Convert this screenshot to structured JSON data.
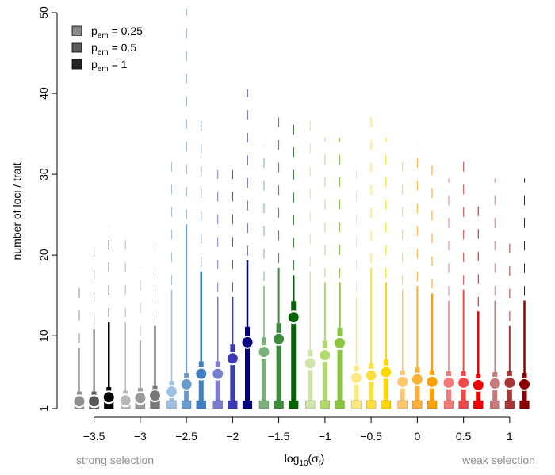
{
  "chart_data": {
    "type": "scatter",
    "xlabel_main": "log",
    "xlabel_sub": "10",
    "xlabel_paren": "(σ",
    "xlabel_paren_sub": "f",
    "xlabel_close": ")",
    "ylabel": "number of loci / trait",
    "ylim": [
      1,
      50
    ],
    "xlim": [
      -3.9,
      1.25
    ],
    "yticks": [
      1,
      10,
      20,
      30,
      40,
      50
    ],
    "xticks": [
      -3.5,
      -3,
      -2.5,
      -2,
      -1.5,
      -1,
      -0.5,
      0,
      0.5,
      1
    ],
    "xtick_labels": [
      "−3.5",
      "−3",
      "−2.5",
      "−2",
      "−1.5",
      "−1",
      "−0.5",
      "0",
      "0.5",
      "1"
    ],
    "notes": {
      "left": "strong selection",
      "right": "weak selection"
    },
    "legend": {
      "placement": "top-left",
      "entries": [
        {
          "prefix": "p",
          "sub": "em",
          "suffix": " = 0.25",
          "color": "#8a8a8a"
        },
        {
          "prefix": "p",
          "sub": "em",
          "suffix": " = 0.5",
          "color": "#5c5c5c"
        },
        {
          "prefix": "p",
          "sub": "em",
          "suffix": " = 1",
          "color": "#262626"
        }
      ]
    },
    "groups": [
      {
        "x": -3.5,
        "colors": [
          "#8f8f8f",
          "#595959",
          "#000000"
        ],
        "means": [
          1.9,
          1.9,
          2.4
        ],
        "maxes": [
          16.5,
          21.5,
          23.5
        ]
      },
      {
        "x": -3.0,
        "colors": [
          "#b8b8b8",
          "#9a9a9a",
          "#787878"
        ],
        "means": [
          2.0,
          2.3,
          2.6
        ],
        "maxes": [
          23.5,
          18.5,
          22.5
        ]
      },
      {
        "x": -2.5,
        "colors": [
          "#9ec0e2",
          "#6a9bd0",
          "#3d7fc0"
        ],
        "means": [
          3.1,
          4.0,
          5.3
        ],
        "maxes": [
          32.5,
          50.5,
          37.5
        ]
      },
      {
        "x": -2.0,
        "colors": [
          "#7b7dd0",
          "#3b3bb5",
          "#000080"
        ],
        "means": [
          5.3,
          7.2,
          9.2
        ],
        "maxes": [
          30.5,
          30.5,
          40.5
        ]
      },
      {
        "x": -1.5,
        "colors": [
          "#7ab07a",
          "#3c8c3c",
          "#006400"
        ],
        "means": [
          8.0,
          9.6,
          12.3
        ],
        "maxes": [
          33.5,
          38.5,
          36.5
        ]
      },
      {
        "x": -1.0,
        "colors": [
          "#cfe5a8",
          "#b3d96e",
          "#8cc63f"
        ],
        "means": [
          6.6,
          7.6,
          9.1
        ],
        "maxes": [
          37.5,
          34.5,
          34.5
        ]
      },
      {
        "x": -0.5,
        "colors": [
          "#ffe880",
          "#ffde40",
          "#ffd700"
        ],
        "means": [
          4.8,
          5.1,
          5.5
        ],
        "maxes": [
          30.5,
          38.5,
          34.5
        ]
      },
      {
        "x": 0.0,
        "colors": [
          "#ffc66e",
          "#ffb036",
          "#ff9f00"
        ],
        "means": [
          4.3,
          4.6,
          4.3
        ],
        "maxes": [
          32.5,
          33.5,
          31.5
        ]
      },
      {
        "x": 0.5,
        "colors": [
          "#f27a7a",
          "#f04848",
          "#ee0000"
        ],
        "means": [
          4.2,
          4.2,
          3.9
        ],
        "maxes": [
          29.5,
          32.5,
          26.5
        ]
      },
      {
        "x": 1.0,
        "colors": [
          "#c87a7a",
          "#a83636",
          "#8b0000"
        ],
        "means": [
          4.1,
          4.2,
          4.0
        ],
        "maxes": [
          29.5,
          22.5,
          29.5
        ]
      }
    ]
  }
}
